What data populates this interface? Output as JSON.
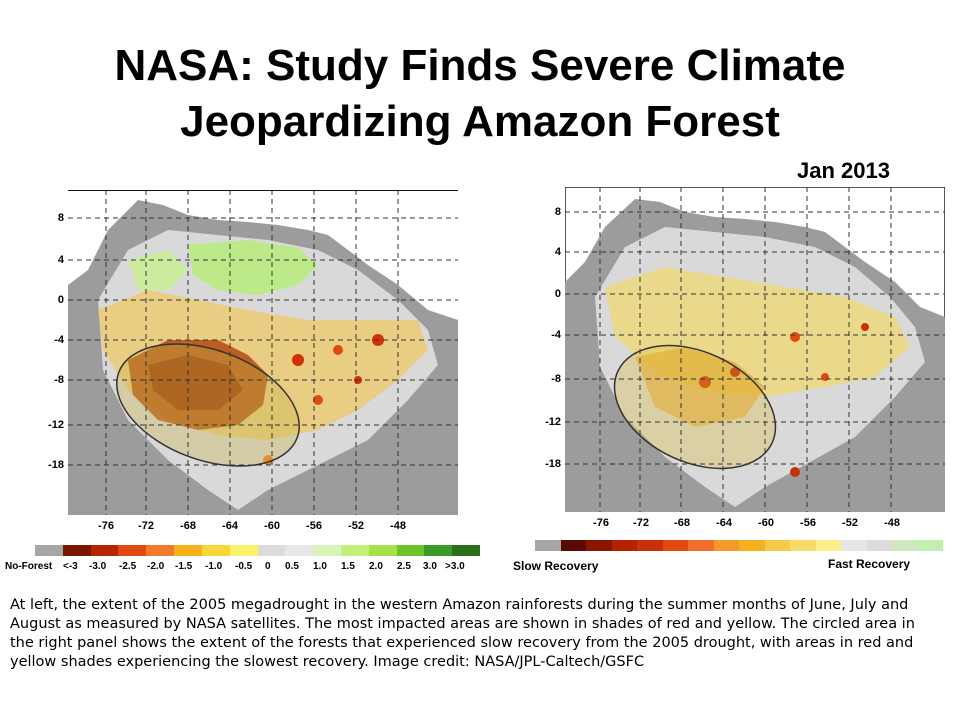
{
  "slide": {
    "title_line1": "NASA: Study Finds Severe Climate",
    "title_line2": "Jeopardizing Amazon Forest",
    "date": "Jan 2013",
    "caption": "At left, the extent of the 2005 megadrought in the western Amazon rainforests during the summer months of June, July and August as measured by NASA satellites. The most impacted areas are shown in shades of red and yellow. The circled area in the right panel shows the extent of the forests that experienced slow recovery from the 2005 drought, with areas in red and yellow shades experiencing the slowest recovery. Image credit: NASA/JPL-Caltech/GSFC"
  },
  "left_map": {
    "y_ticks": [
      "8",
      "4",
      "0",
      "-4",
      "-8",
      "-12",
      "-18"
    ],
    "x_ticks": [
      "-76",
      "-72",
      "-68",
      "-64",
      "-60",
      "-56",
      "-52",
      "-48"
    ],
    "legend_labels": [
      "No-Forest",
      "<-3",
      "-3.0",
      "-2.5",
      "-2.0",
      "-1.5",
      "-1.0",
      "-0.5",
      "0",
      "0.5",
      "1.0",
      "1.5",
      "2.0",
      "2.5",
      "3.0",
      ">3.0"
    ],
    "legend_colors": [
      "#a6a6a6",
      "#7a1500",
      "#b32600",
      "#e04a10",
      "#f07a2a",
      "#f5b21a",
      "#f5d73a",
      "#fbf36a",
      "#dcdcdc",
      "#e8e8e8",
      "#d6f5b8",
      "#c4f07a",
      "#a8e04a",
      "#6cc42a",
      "#3c9a28",
      "#2d6e18"
    ]
  },
  "right_map": {
    "y_ticks": [
      "8",
      "4",
      "0",
      "-4",
      "-8",
      "-12",
      "-18"
    ],
    "x_ticks": [
      "-76",
      "-72",
      "-68",
      "-64",
      "-60",
      "-56",
      "-52",
      "-48"
    ],
    "legend_left": "Slow Recovery",
    "legend_right": "Fast Recovery",
    "legend_colors": [
      "#a6a6a6",
      "#5a0a00",
      "#8a1600",
      "#b52200",
      "#c8300a",
      "#e04a10",
      "#f0702a",
      "#f59a2a",
      "#f5b21a",
      "#f5c94a",
      "#f7dc6a",
      "#fbf08a",
      "#e6e6e6",
      "#dcdcdc",
      "#cfe8c0",
      "#c0f0b0"
    ]
  }
}
